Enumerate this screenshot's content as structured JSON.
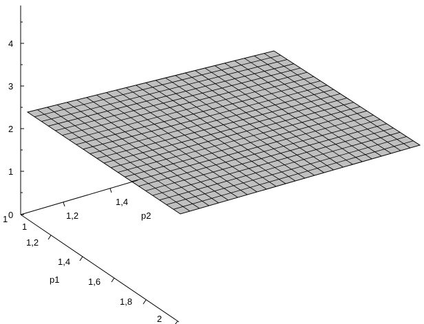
{
  "chart_data": {
    "type": "surface3d",
    "title": "",
    "axes": {
      "x": {
        "label": "p2",
        "ticks": [
          "1",
          "1,2",
          "1,4"
        ]
      },
      "y": {
        "label": "p1",
        "ticks": [
          "1",
          "1,2",
          "1,4",
          "1,6",
          "1,8",
          "2"
        ]
      },
      "z": {
        "label": "",
        "ticks": [
          "0",
          "1",
          "2",
          "3",
          "4"
        ]
      }
    },
    "surface": {
      "value_approx": 2.4,
      "fill_color": "#c0c0c0",
      "mesh_color": "#000000",
      "mesh_rows": 22,
      "mesh_cols": 25
    },
    "legend": "none",
    "grid": false
  }
}
